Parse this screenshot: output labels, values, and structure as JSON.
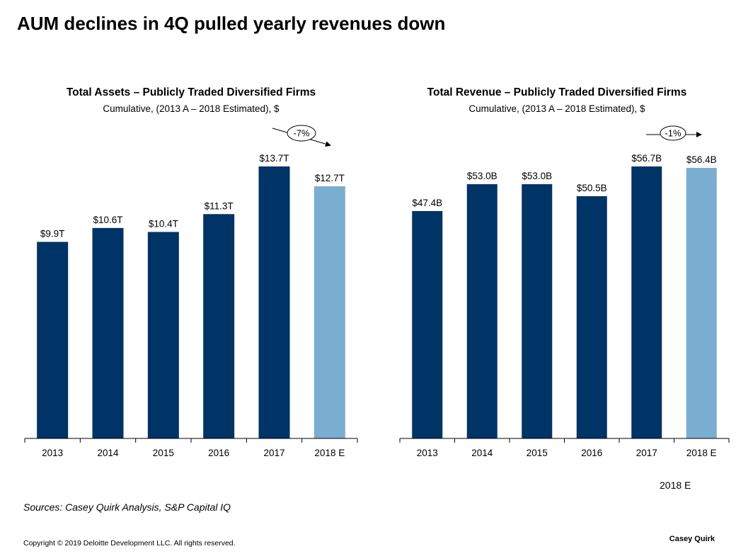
{
  "page": {
    "title": "AUM declines in 4Q pulled yearly revenues down",
    "sources": "Sources: Casey Quirk Analysis, S&P Capital IQ",
    "copyright": "Copyright © 2019 Deloitte Development LLC. All rights reserved.",
    "brand": "Casey Quirk",
    "extra_label": "2018 E"
  },
  "colors": {
    "actual": "#003366",
    "estimate": "#7AAED0",
    "axis": "#000000"
  },
  "chart_data": [
    {
      "type": "bar",
      "title": "Total Assets – Publicly Traded Diversified Firms",
      "subtitle": "Cumulative, (2013 A – 2018 Estimated), $",
      "categories": [
        "2013",
        "2014",
        "2015",
        "2016",
        "2017",
        "2018 E"
      ],
      "values": [
        9.9,
        10.6,
        10.4,
        11.3,
        13.7,
        12.7
      ],
      "labels": [
        "$9.9T",
        "$10.6T",
        "$10.4T",
        "$11.3T",
        "$13.7T",
        "$12.7T"
      ],
      "estimated": [
        false,
        false,
        false,
        false,
        false,
        true
      ],
      "unit": "T",
      "ylim": [
        0,
        13.7
      ],
      "annotation": {
        "text": "-7%",
        "direction": "down"
      }
    },
    {
      "type": "bar",
      "title": "Total Revenue – Publicly Traded Diversified Firms",
      "subtitle": "Cumulative, (2013 A – 2018 Estimated), $",
      "categories": [
        "2013",
        "2014",
        "2015",
        "2016",
        "2017",
        "2018 E"
      ],
      "values": [
        47.4,
        53.0,
        53.0,
        50.5,
        56.7,
        56.4
      ],
      "labels": [
        "$47.4B",
        "$53.0B",
        "$53.0B",
        "$50.5B",
        "$56.7B",
        "$56.4B"
      ],
      "estimated": [
        false,
        false,
        false,
        false,
        false,
        true
      ],
      "unit": "B",
      "ylim": [
        0,
        56.7
      ],
      "annotation": {
        "text": "-1%",
        "direction": "flat"
      }
    }
  ]
}
